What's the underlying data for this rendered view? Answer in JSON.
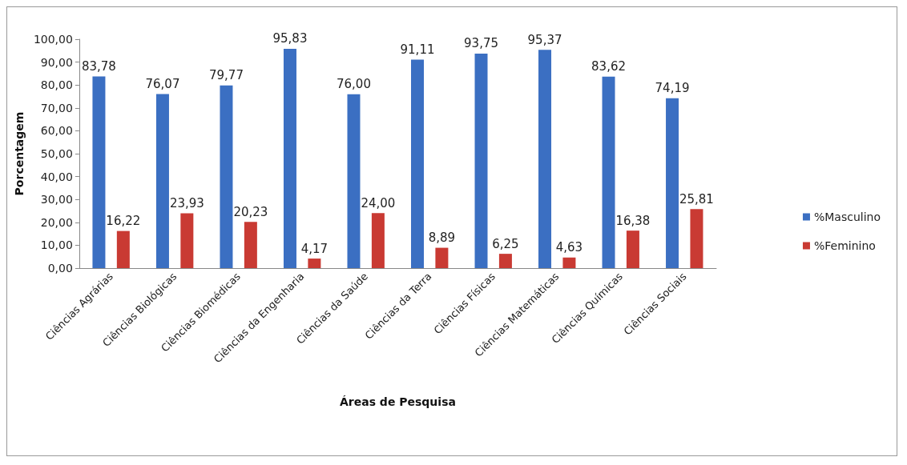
{
  "chart_data": {
    "type": "bar",
    "xlabel": "Áreas de Pesquisa",
    "ylabel": "Porcentagem",
    "categories": [
      "Ciências Agrárias",
      "Ciências Biológicas",
      "Ciências Biomédicas",
      "Ciências da Engenharia",
      "Ciências da Saúde",
      "Ciências da Terra",
      "Ciências Físicas",
      "Ciências Matemáticas",
      "Ciências Químicas",
      "Ciências Sociais"
    ],
    "series": [
      {
        "name": "%Masculino",
        "color": "#3b6fc2",
        "values": [
          83.78,
          76.07,
          79.77,
          95.83,
          76.0,
          91.11,
          93.75,
          95.37,
          83.62,
          74.19
        ],
        "value_labels": [
          "83,78",
          "76,07",
          "79,77",
          "95,83",
          "76,00",
          "91,11",
          "93,75",
          "95,37",
          "83,62",
          "74,19"
        ]
      },
      {
        "name": "%Feminino",
        "color": "#c93a33",
        "values": [
          16.22,
          23.93,
          20.23,
          4.17,
          24.0,
          8.89,
          6.25,
          4.63,
          16.38,
          25.81
        ],
        "value_labels": [
          "16,22",
          "23,93",
          "20,23",
          "4,17",
          "24,00",
          "8,89",
          "6,25",
          "4,63",
          "16,38",
          "25,81"
        ]
      }
    ],
    "ylim": [
      0,
      100
    ],
    "yticks": [
      {
        "value": 0,
        "label": "0,00"
      },
      {
        "value": 10,
        "label": "10,00"
      },
      {
        "value": 20,
        "label": "20,00"
      },
      {
        "value": 30,
        "label": "30,00"
      },
      {
        "value": 40,
        "label": "40,00"
      },
      {
        "value": 50,
        "label": "50,00"
      },
      {
        "value": 60,
        "label": "60,00"
      },
      {
        "value": 70,
        "label": "70,00"
      },
      {
        "value": 80,
        "label": "80,00"
      },
      {
        "value": 90,
        "label": "90,00"
      },
      {
        "value": 100,
        "label": "100,00"
      }
    ],
    "grid": false,
    "legend": "right"
  }
}
